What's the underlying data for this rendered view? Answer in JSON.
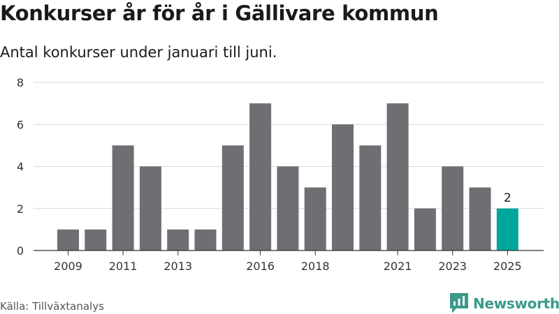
{
  "title": "Konkurser år för år i Gällivare kommun",
  "subtitle": "Antal konkurser under januari till juni.",
  "source": "Källa: Tillväxtanalys",
  "brand": {
    "name": "Newsworthy",
    "icon": "newsworthy-logo-icon",
    "color": "#3b9a8c"
  },
  "colors": {
    "bar": "#6f6e73",
    "highlight": "#00a59b",
    "grid": "#d9d9d9",
    "axis": "#333333"
  },
  "chart_data": {
    "type": "bar",
    "title": "Konkurser år för år i Gällivare kommun",
    "subtitle": "Antal konkurser under januari till juni.",
    "xlabel": "",
    "ylabel": "",
    "categories": [
      "2009",
      "2010",
      "2011",
      "2012",
      "2013",
      "2014",
      "2015",
      "2016",
      "2017",
      "2018",
      "2019",
      "2020",
      "2021",
      "2022",
      "2023",
      "2024",
      "2025"
    ],
    "values": [
      1,
      1,
      5,
      4,
      1,
      1,
      5,
      7,
      4,
      3,
      6,
      5,
      7,
      2,
      4,
      3,
      2
    ],
    "x_tick_labels": [
      "2009",
      "2011",
      "2013",
      "2016",
      "2018",
      "2021",
      "2023",
      "2025"
    ],
    "ylim": [
      0,
      8
    ],
    "yticks": [
      0,
      2,
      4,
      6,
      8
    ],
    "grid": true,
    "highlight": {
      "category": "2025",
      "label": "2"
    }
  }
}
